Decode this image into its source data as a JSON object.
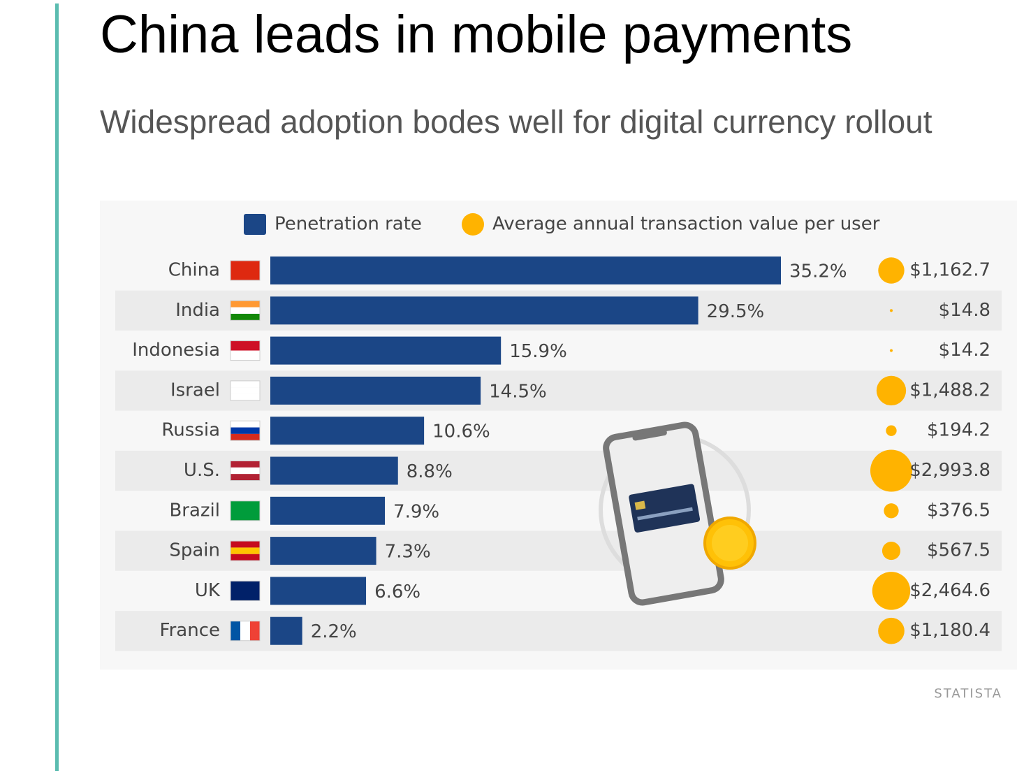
{
  "chart_data": {
    "type": "bar",
    "title": "China leads in mobile payments",
    "subtitle": "Widespread adoption bodes well for digital currency rollout",
    "source": "STATISTA",
    "categories": [
      "China",
      "India",
      "Indonesia",
      "Israel",
      "Russia",
      "U.S.",
      "Brazil",
      "Spain",
      "UK",
      "France"
    ],
    "series": [
      {
        "name": "Penetration rate",
        "color": "#1b4686",
        "type": "bar",
        "values": [
          35.2,
          29.5,
          15.9,
          14.5,
          10.6,
          8.8,
          7.9,
          7.3,
          6.6,
          2.2
        ],
        "value_labels": [
          "35.2%",
          "29.5%",
          "15.9%",
          "14.5%",
          "10.6%",
          "8.8%",
          "7.9%",
          "7.3%",
          "6.6%",
          "2.2%"
        ]
      },
      {
        "name": "Average annual transaction value per user",
        "color": "#ffb300",
        "type": "bubble",
        "values": [
          1162.7,
          14.8,
          14.2,
          1488.2,
          194.2,
          2993.8,
          376.5,
          567.5,
          2464.6,
          1180.4
        ],
        "value_labels": [
          "$1,162.7",
          "$14.8",
          "$14.2",
          "$1,488.2",
          "$194.2",
          "$2,993.8",
          "$376.5",
          "$567.5",
          "$2,464.6",
          "$1,180.4"
        ]
      }
    ]
  }
}
